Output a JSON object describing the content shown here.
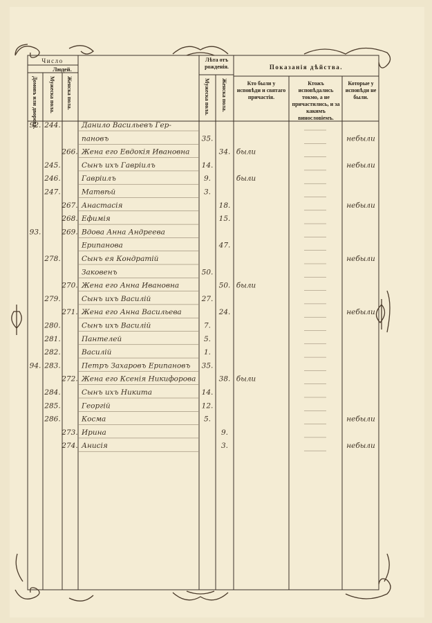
{
  "header": {
    "count": "Число",
    "people": "Людей.",
    "houses": "Домовъ или дворовъ.",
    "male": "Мужеска пола.",
    "female": "Женска пола.",
    "age": "Лѣта отъ рожденія.",
    "age_male": "Мужеска пола.",
    "age_female": "Женска пола.",
    "indications": "Показанія дѣйства.",
    "confessed": "Кто были у исповѣди и святаго причастія.",
    "confessed_only": "Ктожъ исповѣдались токмо, а не причастились, и за какимъ винословіемъ.",
    "absent": "Которые у исповѣди не были."
  },
  "rows": [
    {
      "house": "92.",
      "male": "244.",
      "name": "Данило Васильевъ Гер-"
    },
    {
      "name": "пановъ",
      "age_m": "35.",
      "absent": "небыли"
    },
    {
      "female": "266.",
      "name": "Жена его Евдокія Ивановна",
      "age_f": "34.",
      "confessed": "были"
    },
    {
      "male": "245.",
      "name": "Сынъ ихъ Гавріилъ",
      "age_m": "14.",
      "absent": "небыли"
    },
    {
      "male": "246.",
      "name": "Гавріилъ",
      "age_m": "9.",
      "confessed": "были"
    },
    {
      "male": "247.",
      "name": "Матвѣй",
      "age_m": "3."
    },
    {
      "female": "267.",
      "name": "Анастасія",
      "age_f": "18.",
      "absent": "небыли"
    },
    {
      "female": "268.",
      "name": "Ефимія",
      "age_f": "15."
    },
    {
      "house": "93.",
      "female": "269.",
      "name": "Вдова Анна Андреева"
    },
    {
      "name": "Ерипанова",
      "age_f": "47."
    },
    {
      "male": "278.",
      "name": "Сынъ ея Кондратій",
      "absent": "небыли"
    },
    {
      "name": "Заковенъ",
      "age_m": "50."
    },
    {
      "female": "270.",
      "name": "Жена его Анна Ивановна",
      "age_f": "50.",
      "confessed": "были"
    },
    {
      "male": "279.",
      "name": "Сынъ ихъ Василій",
      "age_m": "27."
    },
    {
      "female": "271.",
      "name": "Жена его Анна Васильева",
      "age_f": "24.",
      "absent": "небыли"
    },
    {
      "male": "280.",
      "name": "Сынъ ихъ Василій",
      "age_m": "7."
    },
    {
      "male": "281.",
      "name": "Пантелей",
      "age_m": "5."
    },
    {
      "male": "282.",
      "name": "Василій",
      "age_m": "1."
    },
    {
      "house": "94.",
      "male": "283.",
      "name": "Петръ Захаровъ Ерипановъ",
      "age_m": "35."
    },
    {
      "female": "272.",
      "name": "Жена его Ксенія Никифорова",
      "age_f": "38.",
      "confessed": "были"
    },
    {
      "male": "284.",
      "name": "Сынъ ихъ Никита",
      "age_m": "14."
    },
    {
      "male": "285.",
      "name": "Георгій",
      "age_m": "12."
    },
    {
      "male": "286.",
      "name": "Косма",
      "age_m": "5.",
      "absent": "небыли"
    },
    {
      "female": "273.",
      "name": "Ирина",
      "age_f": "9."
    },
    {
      "female": "274.",
      "name": "Анисія",
      "age_f": "3.",
      "absent": "небыли"
    }
  ]
}
